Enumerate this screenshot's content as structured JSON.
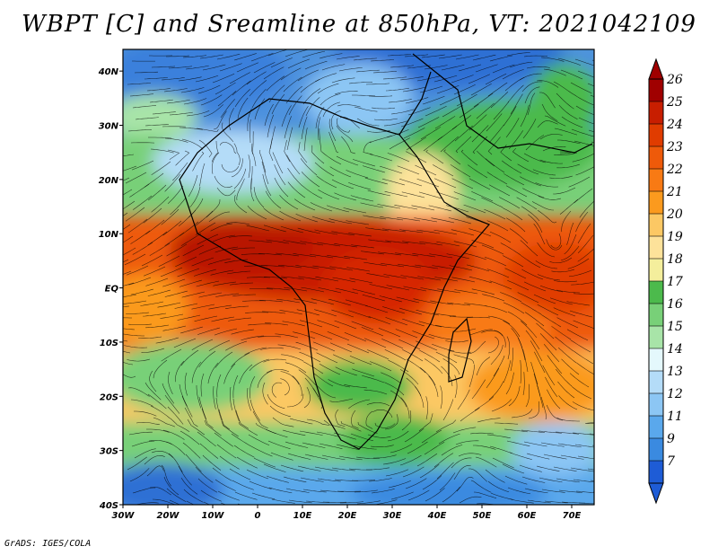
{
  "title": "WBPT [C] and Sreamline at 850hPa, VT: 2021042109",
  "footer": "GrADS: IGES/COLA",
  "map": {
    "lat_labels": [
      "40N",
      "30N",
      "20N",
      "10N",
      "EQ",
      "10S",
      "20S",
      "30S",
      "40S"
    ],
    "lon_labels": [
      "30W",
      "20W",
      "10W",
      "0",
      "10E",
      "20E",
      "30E",
      "40E",
      "50E",
      "60E",
      "70E"
    ],
    "lat_range": [
      -40,
      44
    ],
    "lon_range": [
      -30,
      75
    ]
  },
  "colorbar": {
    "labels": [
      "26",
      "25",
      "24",
      "23",
      "22",
      "21",
      "20",
      "19",
      "18",
      "17",
      "16",
      "15",
      "14",
      "13",
      "12",
      "11",
      "9",
      "7"
    ],
    "colors": [
      "#a00000",
      "#c81e00",
      "#e03c00",
      "#ee5a0a",
      "#f87a14",
      "#fb9a1e",
      "#fcc864",
      "#fde29a",
      "#f4ee9c",
      "#4cba4c",
      "#78d078",
      "#a8e4a8",
      "#e4f8fc",
      "#b4dcf8",
      "#8cc6f4",
      "#5aa8ec",
      "#3a8ae0",
      "#1e5cd6"
    ]
  }
}
